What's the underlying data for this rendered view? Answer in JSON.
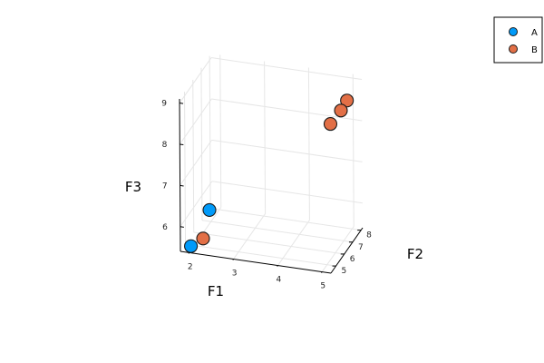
{
  "chart_data": {
    "type": "scatter",
    "projection": "3d",
    "xlabel": "F1",
    "ylabel": "F2",
    "zlabel": "F3",
    "xlim": [
      1.8,
      5.2
    ],
    "ylim": [
      4.4,
      8.2
    ],
    "zlim": [
      5.4,
      9.1
    ],
    "xticks": [
      2,
      3,
      4,
      5
    ],
    "yticks": [
      5,
      6,
      7,
      8
    ],
    "zticks": [
      6,
      7,
      8,
      9
    ],
    "grid": true,
    "legend_position": "top-right",
    "series": [
      {
        "name": "A",
        "color": "#009af9",
        "points": [
          {
            "x": 2.0,
            "y": 4.6,
            "z": 5.5
          },
          {
            "x": 2.1,
            "y": 6.3,
            "z": 5.9
          }
        ]
      },
      {
        "name": "B",
        "color": "#e26f46",
        "points": [
          {
            "x": 2.2,
            "y": 5.0,
            "z": 5.6
          },
          {
            "x": 4.6,
            "y": 7.6,
            "z": 8.0
          },
          {
            "x": 4.8,
            "y": 7.8,
            "z": 8.3
          },
          {
            "x": 4.9,
            "y": 8.0,
            "z": 8.5
          }
        ]
      }
    ]
  }
}
